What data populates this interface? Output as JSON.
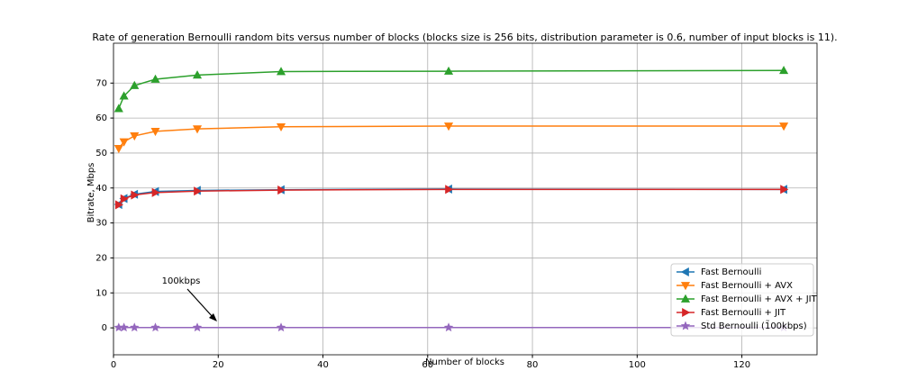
{
  "chart_data": {
    "type": "line",
    "title": "Rate of generation Bernoulli random bits versus number of blocks (blocks size is 256 bits, distribution parameter is 0.6, number of input blocks is 11).",
    "x_label": "Number of blocks",
    "y_label": "Bitrate, Mbps",
    "x": [
      1,
      2,
      4,
      8,
      16,
      32,
      64,
      128
    ],
    "series": [
      {
        "name": "Fast Bernoulli",
        "color": "#1f77b4",
        "marker": "left",
        "values": [
          35.3,
          37.0,
          38.2,
          39.0,
          39.3,
          39.5,
          39.7,
          39.6
        ]
      },
      {
        "name": "Fast Bernoulli + AVX",
        "color": "#ff7f0e",
        "marker": "down",
        "values": [
          51.3,
          53.2,
          54.9,
          56.2,
          56.9,
          57.5,
          57.7,
          57.7
        ]
      },
      {
        "name": "Fast Bernoulli + AVX + JIT",
        "color": "#2ca02c",
        "marker": "up",
        "values": [
          62.7,
          66.3,
          69.3,
          71.1,
          72.3,
          73.3,
          73.4,
          73.6
        ]
      },
      {
        "name": "Fast Bernoulli + JIT",
        "color": "#d62728",
        "marker": "right",
        "values": [
          35.2,
          36.9,
          38.0,
          38.7,
          39.1,
          39.4,
          39.6,
          39.6
        ]
      },
      {
        "name": "Std Bernoulli (1̃00kbps)",
        "color": "#9467bd",
        "marker": "star",
        "values": [
          0.1,
          0.1,
          0.1,
          0.1,
          0.1,
          0.1,
          0.1,
          0.1
        ]
      }
    ],
    "annotation": "100kbps",
    "xlim": [
      0,
      134.35
    ],
    "ylim": [
      -7.7,
      81.4
    ],
    "xticks": [
      0,
      20,
      40,
      60,
      80,
      100,
      120
    ],
    "yticks": [
      0,
      10,
      20,
      30,
      40,
      50,
      60,
      70
    ],
    "grid": true,
    "legend": "lower right"
  }
}
